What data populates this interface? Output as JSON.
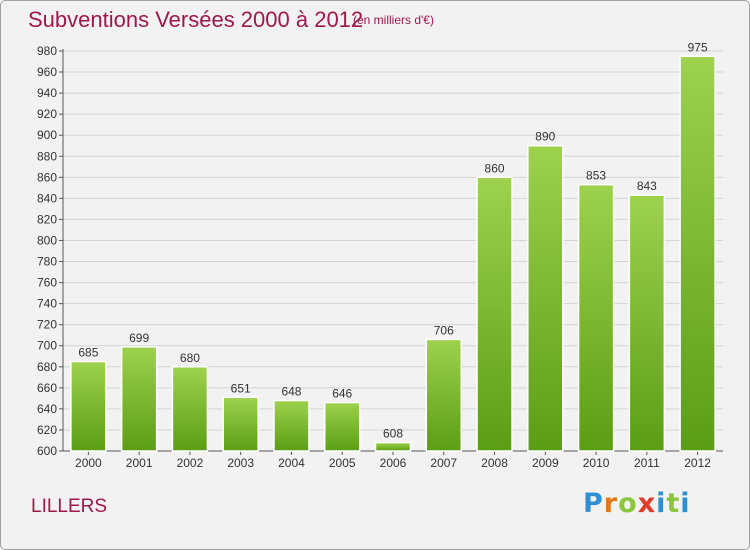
{
  "title": "Subventions Versées 2000 à 2012",
  "subtitle": "(en milliers d'€)",
  "city": "LILLERS",
  "logo": {
    "text": "Proxiti",
    "colors": [
      "#2f8fd0",
      "#e07a18",
      "#8cc63e",
      "#e03a2a",
      "#2f8fd0",
      "#8cc63e"
    ]
  },
  "colors": {
    "title": "#a0174b",
    "bar_top": "#9dd24d",
    "bar_bottom": "#5a9e14",
    "grid": "#d4d4d4",
    "background": "#f2f2f2"
  },
  "chart_data": {
    "type": "bar",
    "title": "Subventions Versées 2000 à 2012",
    "subtitle": "(en milliers d'€)",
    "xlabel": "",
    "ylabel": "",
    "categories": [
      "2000",
      "2001",
      "2002",
      "2003",
      "2004",
      "2005",
      "2006",
      "2007",
      "2008",
      "2009",
      "2010",
      "2011",
      "2012"
    ],
    "values": [
      685,
      699,
      680,
      651,
      648,
      646,
      608,
      706,
      860,
      890,
      853,
      843,
      975
    ],
    "ylim": [
      600,
      980
    ],
    "yticks": [
      600,
      620,
      640,
      660,
      680,
      700,
      720,
      740,
      760,
      780,
      800,
      820,
      840,
      860,
      880,
      900,
      920,
      940,
      960,
      980
    ],
    "grid": true,
    "legend": "none"
  }
}
